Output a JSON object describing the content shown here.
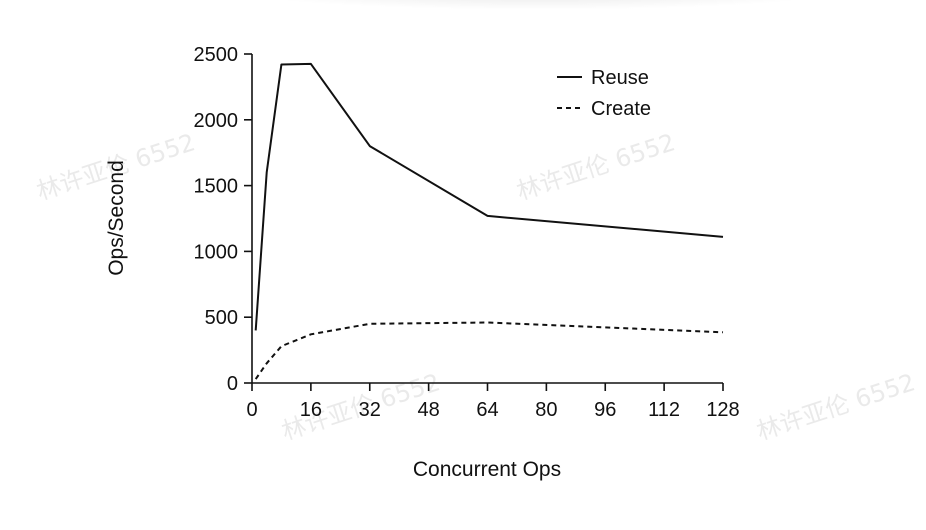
{
  "chart_data": {
    "type": "line",
    "title": "",
    "xlabel": "Concurrent Ops",
    "ylabel": "Ops/Second",
    "xlim": [
      0,
      128
    ],
    "ylim": [
      0,
      2500
    ],
    "xticks": [
      0,
      16,
      32,
      48,
      64,
      80,
      96,
      112,
      128
    ],
    "yticks": [
      0,
      500,
      1000,
      1500,
      2000,
      2500
    ],
    "grid": false,
    "legend_position": "top-right",
    "series": [
      {
        "name": "Reuse",
        "style": "solid",
        "x": [
          1,
          4,
          8,
          16,
          32,
          64,
          128
        ],
        "y": [
          400,
          1600,
          2420,
          2425,
          1800,
          1270,
          1110
        ]
      },
      {
        "name": "Create",
        "style": "dashed",
        "x": [
          1,
          4,
          8,
          16,
          32,
          64,
          128
        ],
        "y": [
          30,
          150,
          280,
          370,
          450,
          460,
          385
        ]
      }
    ]
  },
  "watermark": "林许亚伦 6552"
}
